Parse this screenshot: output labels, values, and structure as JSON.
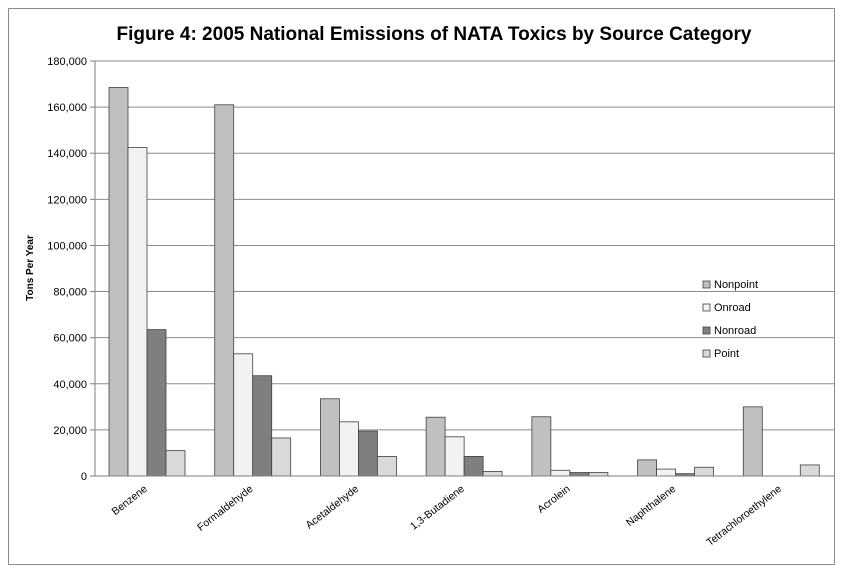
{
  "chart_data": {
    "type": "bar",
    "title": "Figure 4: 2005 National Emissions of NATA Toxics by Source Category",
    "xlabel": "",
    "ylabel": "Tons Per Year",
    "ylim": [
      0,
      180000
    ],
    "yticks": [
      "0",
      "20,000",
      "40,000",
      "60,000",
      "80,000",
      "100,000",
      "120,000",
      "140,000",
      "160,000",
      "180,000"
    ],
    "grid": true,
    "legend_position": "top-right",
    "categories": [
      "Benzene",
      "Formaldehyde",
      "Acetaldehyde",
      "1,3-Butadiene",
      "Acrolein",
      "Naphthalene",
      "Tetrachloroethylene"
    ],
    "series": [
      {
        "name": "Nonpoint",
        "color": "#c0c0c0",
        "values": [
          168500,
          161000,
          33500,
          25500,
          25700,
          7000,
          30000
        ]
      },
      {
        "name": "Onroad",
        "color": "#f2f2f2",
        "values": [
          142500,
          53000,
          23500,
          17000,
          2500,
          3000,
          0
        ]
      },
      {
        "name": "Nonroad",
        "color": "#7f7f7f",
        "values": [
          63500,
          43500,
          19500,
          8500,
          1500,
          1000,
          0
        ]
      },
      {
        "name": "Point",
        "color": "#d9d9d9",
        "values": [
          11000,
          16500,
          8500,
          2000,
          1500,
          3800,
          4800
        ]
      }
    ]
  }
}
